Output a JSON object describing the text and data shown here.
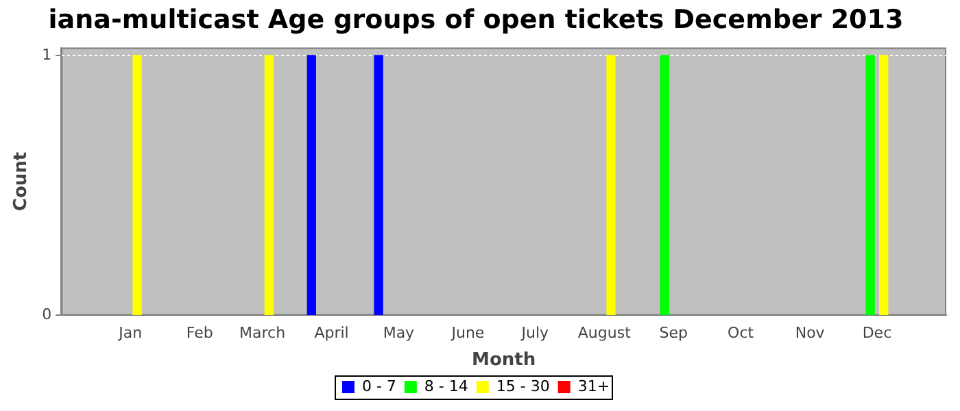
{
  "chart_data": {
    "type": "bar",
    "title": "iana-multicast Age groups of open tickets December 2013",
    "xlabel": "Month",
    "ylabel": "Count",
    "xlim": [
      "2012-12-01",
      "2014-01-01"
    ],
    "xticks": [
      {
        "value": "2013-01-01",
        "label": "Jan"
      },
      {
        "value": "2013-02-01",
        "label": "Feb"
      },
      {
        "value": "2013-03-01",
        "label": "March"
      },
      {
        "value": "2013-04-01",
        "label": "April"
      },
      {
        "value": "2013-05-01",
        "label": "May"
      },
      {
        "value": "2013-06-01",
        "label": "June"
      },
      {
        "value": "2013-07-01",
        "label": "July"
      },
      {
        "value": "2013-08-01",
        "label": "August"
      },
      {
        "value": "2013-09-01",
        "label": "Sep"
      },
      {
        "value": "2013-10-01",
        "label": "Oct"
      },
      {
        "value": "2013-11-01",
        "label": "Nov"
      },
      {
        "value": "2013-12-01",
        "label": "Dec"
      }
    ],
    "ylim": [
      0,
      1.03
    ],
    "yticks": [
      0,
      1
    ],
    "grid": "y",
    "legend": "bottom",
    "series": [
      {
        "name": "0 - 7",
        "color": "#0000ff",
        "x": [
          "2013-03-23",
          "2013-04-22"
        ],
        "values": [
          1,
          1
        ]
      },
      {
        "name": "8 - 14",
        "color": "#00ff00",
        "x": [
          "2013-08-28",
          "2013-11-28"
        ],
        "values": [
          1,
          1
        ]
      },
      {
        "name": "15 - 30",
        "color": "#ffff00",
        "x": [
          "2013-01-04",
          "2013-03-04",
          "2013-08-04",
          "2013-12-04"
        ],
        "values": [
          1,
          1,
          1,
          1
        ]
      },
      {
        "name": "31+",
        "color": "#ff0000"
      }
    ]
  }
}
